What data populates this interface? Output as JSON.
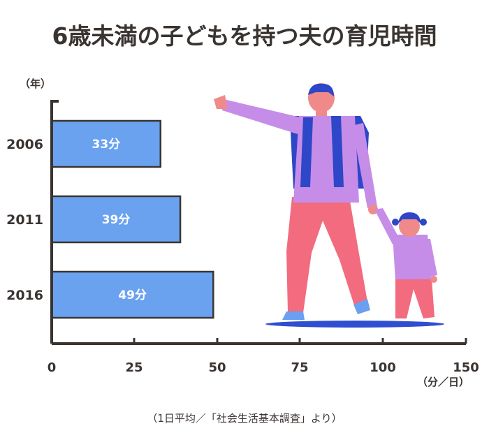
{
  "chart_data": {
    "type": "bar",
    "orientation": "horizontal",
    "title": "6歳未満の子どもを持つ夫の育児時間",
    "ylabel": "（年）",
    "xlabel": "（分／日）",
    "categories": [
      "2006",
      "2011",
      "2016"
    ],
    "values": [
      33,
      39,
      49
    ],
    "data_labels": [
      "33分",
      "39分",
      "49分"
    ],
    "xlim": [
      0,
      150
    ],
    "xticks": [
      "0",
      "25",
      "50",
      "75",
      "100",
      "150"
    ],
    "xtick_values": [
      0,
      25,
      50,
      75,
      100,
      150
    ],
    "grid": false,
    "source": "（1日平均／「社会生活基本調査」より）"
  },
  "colors": {
    "bar_fill": "#6aa2f0",
    "bar_stroke": "#3a3431",
    "axis": "#3a3431",
    "text": "#3a3431"
  },
  "illustration": {
    "subject": "father-holding-child-hand-illustration"
  }
}
